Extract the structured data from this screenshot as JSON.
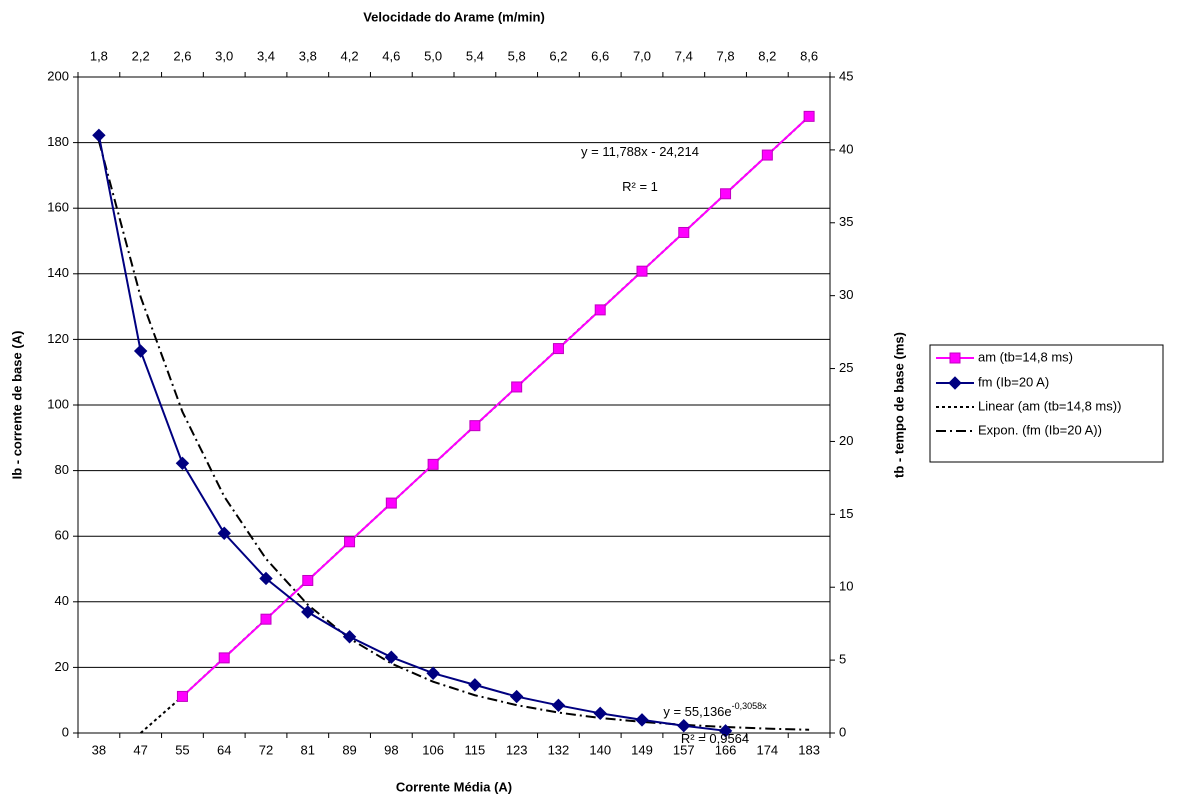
{
  "chart_data": {
    "type": "line",
    "title": "Velocidade do Arame (m/min)",
    "xlabel": "Corrente Média (A)",
    "ylabel": "Ib - corrente de base (A)",
    "y2label": "tb - tempo de base (ms)",
    "categories": [
      "38",
      "47",
      "55",
      "64",
      "72",
      "81",
      "89",
      "98",
      "106",
      "115",
      "123",
      "132",
      "140",
      "149",
      "157",
      "166",
      "174",
      "183"
    ],
    "x2categories": [
      "1,8",
      "2,2",
      "2,6",
      "3,0",
      "3,4",
      "3,8",
      "4,2",
      "4,6",
      "5,0",
      "5,4",
      "5,8",
      "6,2",
      "6,6",
      "7,0",
      "7,4",
      "7,8",
      "8,2",
      "8,6"
    ],
    "ylim": [
      0,
      200
    ],
    "yticks": [
      0,
      20,
      40,
      60,
      80,
      100,
      120,
      140,
      160,
      180,
      200
    ],
    "y2lim": [
      0,
      45
    ],
    "y2ticks": [
      0,
      5,
      10,
      15,
      20,
      25,
      30,
      35,
      40,
      45
    ],
    "grid": true,
    "legend": "right",
    "series": [
      {
        "name": "am (tb=14,8 ms)",
        "color": "#ff00ff",
        "marker": "square",
        "axis": "y",
        "values": [
          null,
          null,
          11.15,
          22.9,
          34.7,
          46.5,
          58.3,
          70.1,
          81.9,
          93.7,
          105.5,
          117.2,
          129.0,
          140.8,
          152.6,
          164.4,
          176.2,
          188.0
        ]
      },
      {
        "name": "fm (Ib=20 A)",
        "color": "#000080",
        "marker": "diamond",
        "axis": "y2",
        "values": [
          41.0,
          26.2,
          18.5,
          13.7,
          10.6,
          8.3,
          6.6,
          5.2,
          4.1,
          3.3,
          2.5,
          1.9,
          1.35,
          0.9,
          0.5,
          0.15,
          null,
          null
        ]
      },
      {
        "name": "Linear (am (tb=14,8 ms))",
        "color": "#000000",
        "dash": "dotted",
        "axis": "y",
        "values": [
          null,
          0,
          11.15,
          22.95,
          34.74,
          46.53,
          58.32,
          70.1,
          81.89,
          93.68,
          105.47,
          117.26,
          129.04,
          140.83,
          152.62,
          164.41,
          176.2,
          187.97
        ]
      },
      {
        "name": "Expon. (fm (Ib=20 A))",
        "color": "#000000",
        "dash": "dashdot",
        "axis": "y2",
        "values": [
          40.61,
          29.91,
          22.03,
          16.22,
          11.95,
          8.8,
          6.48,
          4.77,
          3.52,
          2.59,
          1.91,
          1.4,
          1.03,
          0.76,
          0.56,
          0.41,
          0.3,
          0.22
        ]
      }
    ],
    "annotations": [
      {
        "text": "y = 11,788x - 24,214"
      },
      {
        "text": "R² = 1"
      },
      {
        "text": "y = 55,136e",
        "sup": "-0,3058x"
      },
      {
        "text": "R² = 0,9564"
      }
    ]
  }
}
